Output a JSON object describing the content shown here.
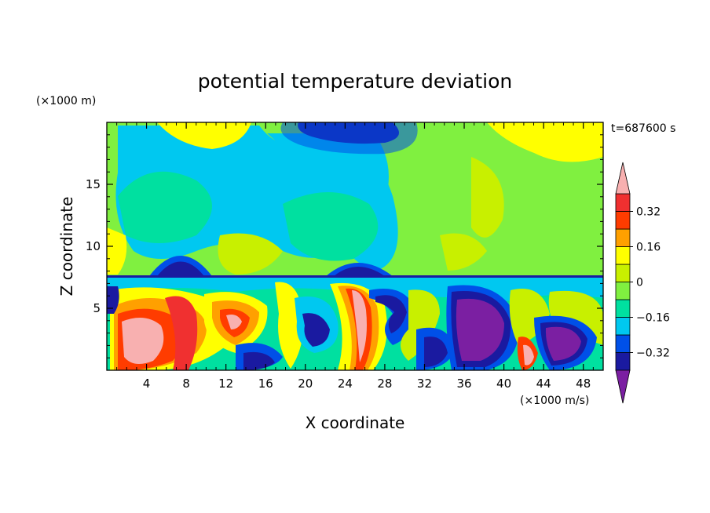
{
  "chart_data": {
    "type": "heatmap",
    "title": "potential temperature deviation",
    "xlabel": "X coordinate",
    "ylabel": "Z coordinate",
    "x_units": "(×1000 m/s)",
    "y_units": "(×1000 m)",
    "time_label": "t=687600 s",
    "xlim": [
      0,
      50
    ],
    "ylim": [
      0,
      20
    ],
    "x_ticks": [
      4,
      8,
      12,
      16,
      20,
      24,
      28,
      32,
      36,
      40,
      44,
      48
    ],
    "y_ticks": [
      5,
      10,
      15
    ],
    "colorbar": {
      "ticks": [
        "0.32",
        "0.16",
        "0",
        "−0.16",
        "−0.32"
      ],
      "tick_values": [
        0.32,
        0.16,
        0,
        -0.16,
        -0.32
      ],
      "levels": [
        -0.4,
        -0.32,
        -0.24,
        -0.16,
        -0.08,
        0,
        0.08,
        0.16,
        0.24,
        0.32,
        0.4
      ],
      "colors": [
        "#7b1fa2",
        "#1a1aa0",
        "#0050e8",
        "#00c8f0",
        "#00e0a0",
        "#80f040",
        "#c8f000",
        "#ffff00",
        "#ffa000",
        "#ff3c00",
        "#f03030",
        "#f8b0b0"
      ]
    }
  }
}
